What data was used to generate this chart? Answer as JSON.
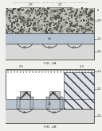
{
  "bg_color": "#f0f0ec",
  "header_color": "#888888",
  "fig2a_label": "FIG. 2A",
  "fig2b_label": "FIG. 2B",
  "fig_border": "#555555",
  "dark_text": "#333333",
  "note": "Two patent cross-section diagrams stacked vertically"
}
